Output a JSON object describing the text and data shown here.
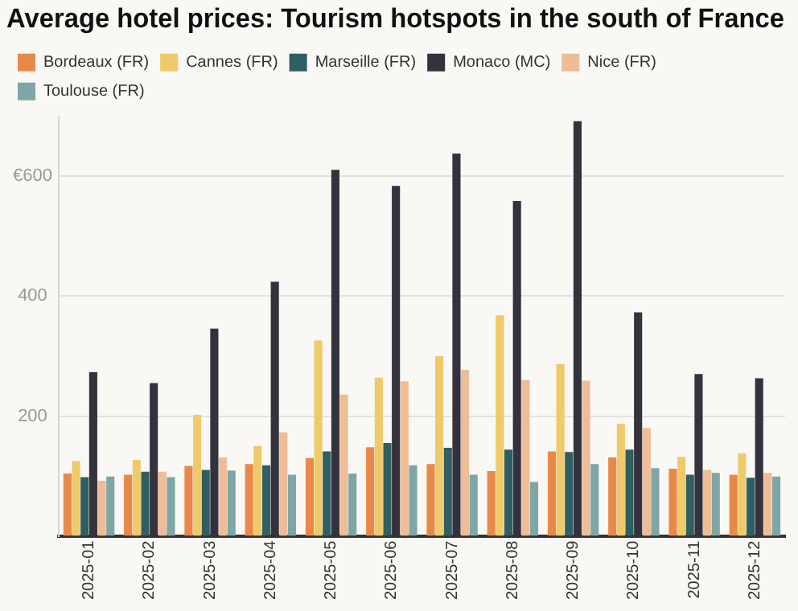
{
  "chart_data": {
    "type": "bar",
    "title": "Average hotel prices: Tourism hotspots in the south of France",
    "categories": [
      "2025-01",
      "2025-02",
      "2025-03",
      "2025-04",
      "2025-05",
      "2025-06",
      "2025-07",
      "2025-08",
      "2025-09",
      "2025-10",
      "2025-11",
      "2025-12"
    ],
    "series": [
      {
        "name": "Bordeaux (FR)",
        "color": "#e8894a",
        "values": [
          104,
          102,
          117,
          120,
          130,
          148,
          120,
          108,
          141,
          131,
          112,
          102
        ]
      },
      {
        "name": "Cannes (FR)",
        "color": "#efca6b",
        "values": [
          125,
          127,
          202,
          150,
          326,
          264,
          300,
          368,
          287,
          187,
          132,
          138
        ]
      },
      {
        "name": "Marseille (FR)",
        "color": "#2f5f62",
        "values": [
          98,
          107,
          110,
          118,
          141,
          155,
          147,
          144,
          140,
          144,
          102,
          97
        ]
      },
      {
        "name": "Monaco (MC)",
        "color": "#33323d",
        "values": [
          273,
          255,
          346,
          424,
          611,
          584,
          638,
          559,
          692,
          373,
          270,
          263
        ]
      },
      {
        "name": "Nice (FR)",
        "color": "#eebc96",
        "values": [
          92,
          107,
          131,
          173,
          236,
          258,
          277,
          260,
          259,
          180,
          110,
          105
        ]
      },
      {
        "name": "Toulouse (FR)",
        "color": "#7fa6a6",
        "values": [
          99,
          98,
          109,
          102,
          104,
          118,
          102,
          90,
          120,
          113,
          105,
          99
        ]
      }
    ],
    "ylim": [
      0,
      700
    ],
    "yticks": [
      {
        "value": 200,
        "label": "200"
      },
      {
        "value": 400,
        "label": "400"
      },
      {
        "value": 600,
        "label": "€600"
      }
    ],
    "grid": "y",
    "legend": "top left"
  }
}
